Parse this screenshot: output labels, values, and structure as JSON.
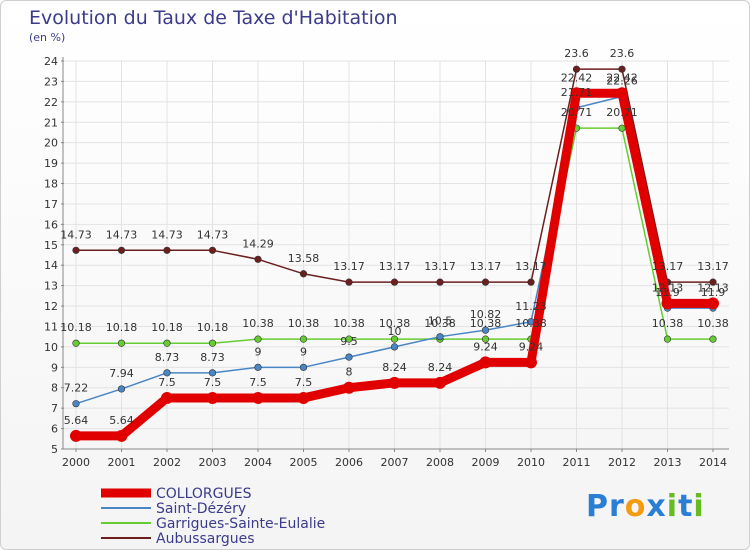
{
  "chart_data": {
    "type": "line",
    "title": "Evolution du Taux de Taxe d'Habitation",
    "subtitle": "(en %)",
    "xlabel": "",
    "ylabel": "",
    "ylim": [
      5,
      24
    ],
    "grid": true,
    "categories": [
      "2000",
      "2001",
      "2002",
      "2003",
      "2004",
      "2005",
      "2006",
      "2007",
      "2008",
      "2009",
      "2010",
      "2011",
      "2012",
      "2013",
      "2014"
    ],
    "yticks": [
      "5",
      "6",
      "7",
      "8",
      "9",
      "10",
      "11",
      "12",
      "13",
      "14",
      "15",
      "16",
      "17",
      "18",
      "19",
      "20",
      "21",
      "22",
      "23",
      "24"
    ],
    "legend_position": "bottom-left",
    "series": [
      {
        "name": "COLLORGUES",
        "color": "#e00000",
        "values": [
          5.64,
          5.64,
          7.5,
          7.5,
          7.5,
          7.5,
          8,
          8.24,
          8.24,
          9.24,
          9.24,
          22.42,
          22.42,
          12.13,
          12.13
        ],
        "labels": [
          "5.64",
          "5.64",
          "7.5",
          "7.5",
          "7.5",
          "7.5",
          "8",
          "8.24",
          "8.24",
          "9.24",
          "9.24",
          "22.42",
          "22.42",
          "12.13",
          "12.13"
        ]
      },
      {
        "name": "Saint-Dézéry",
        "color": "#4a86c4",
        "values": [
          7.22,
          7.94,
          8.73,
          8.73,
          9,
          9,
          9.5,
          10,
          10.5,
          10.82,
          11.23,
          21.71,
          22.26,
          11.9,
          11.9
        ],
        "labels": [
          "7.22",
          "7.94",
          "8.73",
          "8.73",
          "9",
          "9",
          "9.5",
          "10",
          "10.5",
          "10.82",
          "11.23",
          "21.71",
          "22.26",
          "11.9",
          "11.9"
        ]
      },
      {
        "name": "Garrigues-Sainte-Eulalie",
        "color": "#66cc33",
        "values": [
          10.18,
          10.18,
          10.18,
          10.18,
          10.38,
          10.38,
          10.38,
          10.38,
          10.38,
          10.38,
          10.38,
          20.71,
          20.71,
          10.38,
          10.38
        ],
        "labels": [
          "10.18",
          "10.18",
          "10.18",
          "10.18",
          "10.38",
          "10.38",
          "10.38",
          "10.38",
          "10.38",
          "10.38",
          "10.38",
          "20.71",
          "20.71",
          "10.38",
          "10.38"
        ]
      },
      {
        "name": "Aubussargues",
        "color": "#6b1f1f",
        "values": [
          14.73,
          14.73,
          14.73,
          14.73,
          14.29,
          13.58,
          13.17,
          13.17,
          13.17,
          13.17,
          13.17,
          23.6,
          23.6,
          13.17,
          13.17
        ],
        "labels": [
          "14.73",
          "14.73",
          "14.73",
          "14.73",
          "14.29",
          "13.58",
          "13.17",
          "13.17",
          "13.17",
          "13.17",
          "13.17",
          "23.6",
          "23.6",
          "13.17",
          "13.17"
        ]
      }
    ]
  },
  "logo": {
    "text": [
      "P",
      "r",
      "o",
      "x",
      "i",
      "t",
      "i"
    ],
    "colors": [
      "#2a7fd4",
      "#2a7fd4",
      "#f39c12",
      "#2a7fd4",
      "#66bb22",
      "#2a7fd4",
      "#66bb22"
    ]
  }
}
